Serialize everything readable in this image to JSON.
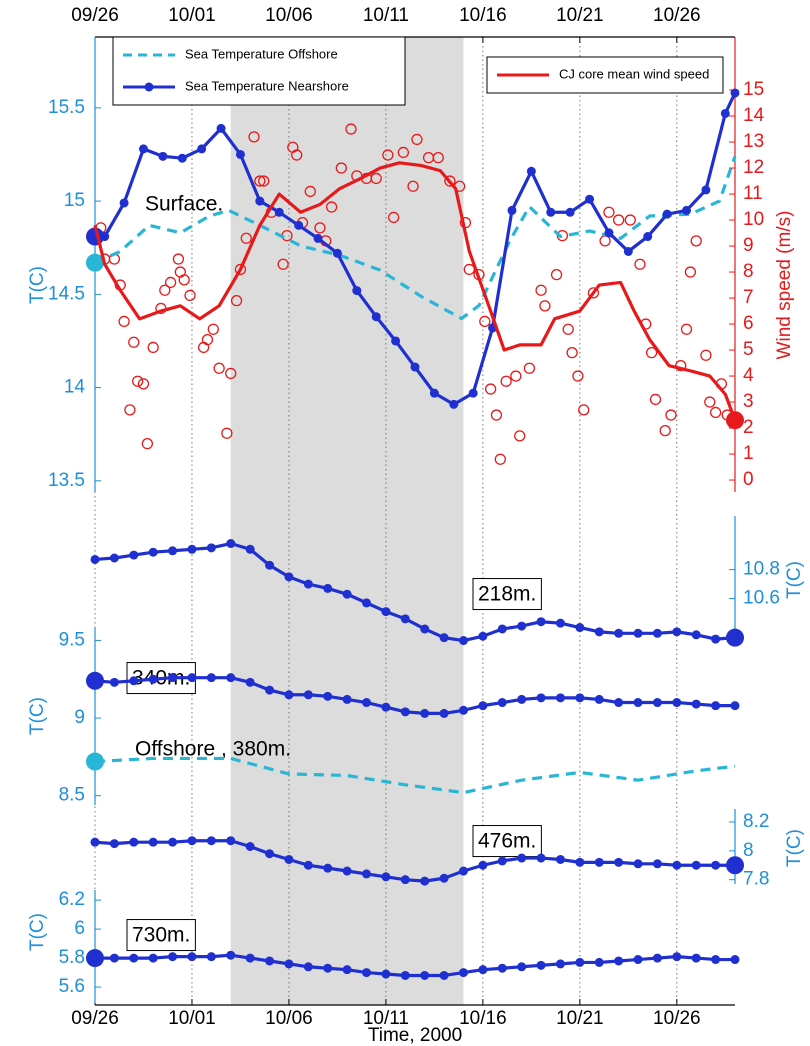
{
  "chart_data": {
    "type": "line",
    "xlim": [
      0,
      33
    ],
    "xticks": [
      {
        "value": 0,
        "label": "09/26"
      },
      {
        "value": 5,
        "label": "10/01"
      },
      {
        "value": 10,
        "label": "10/06"
      },
      {
        "value": 15,
        "label": "10/11"
      },
      {
        "value": 20,
        "label": "10/16"
      },
      {
        "value": 25,
        "label": "10/21"
      },
      {
        "value": 30,
        "label": "10/26"
      }
    ],
    "xlabel": "Time, 2000",
    "xgrid": true,
    "shaded_span": [
      7,
      19
    ],
    "shade_color": "#dcdcdc",
    "panels": [
      {
        "ylim": [
          13.44,
          15.88
        ],
        "yticks": [
          13.5,
          14,
          14.5,
          15,
          15.5
        ],
        "ylabel": "T(C)",
        "axis_side": "left",
        "ycolor": "#1e8fd8",
        "y2lim": [
          -0.46,
          17.04
        ],
        "y2ticks": [
          0,
          1,
          2,
          3,
          4,
          5,
          6,
          7,
          8,
          9,
          10,
          11,
          12,
          13,
          14,
          15
        ],
        "y2label": "Wind speed (m/s)",
        "y2color": "#e8191a",
        "labels": [
          "Surface."
        ],
        "series": [
          {
            "name": "Sea Temperature Offshore",
            "type": "line",
            "dashed": true,
            "marker": false,
            "color": "#29b6d6",
            "endpoint": "first",
            "x": [
              0,
              1.3,
              2.8,
              4.4,
              5.9,
              6.9,
              8.5,
              10.6,
              12.6,
              14.7,
              16.8,
              18.9,
              19.8,
              21.4,
              22.4,
              24,
              25.5,
              27.1,
              28.6,
              30.7,
              32.2,
              33
            ],
            "values": [
              14.67,
              14.73,
              14.87,
              14.83,
              14.92,
              14.95,
              14.87,
              14.76,
              14.71,
              14.63,
              14.49,
              14.37,
              14.44,
              14.79,
              14.97,
              14.81,
              14.84,
              14.8,
              14.92,
              14.93,
              15,
              15.24
            ]
          },
          {
            "name": "Sea Temperature Nearshore",
            "type": "line",
            "dashed": false,
            "marker": true,
            "color": "#1f2fd0",
            "endpoint": "first",
            "x": [
              0,
              0.5,
              1.5,
              2.5,
              3.5,
              4.5,
              5.5,
              6.5,
              7.5,
              8.5,
              9.5,
              10.5,
              11.5,
              12.5,
              13.5,
              14.5,
              15.5,
              16.5,
              17.5,
              18.5,
              19.5,
              20.5,
              21.5,
              22.5,
              23.5,
              24.5,
              25.5,
              26.5,
              27.5,
              28.5,
              29.5,
              30.5,
              31.5,
              32.5,
              33
            ],
            "values": [
              14.81,
              14.81,
              14.99,
              15.28,
              15.24,
              15.23,
              15.28,
              15.39,
              15.25,
              15,
              14.94,
              14.87,
              14.8,
              14.72,
              14.52,
              14.38,
              14.25,
              14.11,
              13.97,
              13.91,
              13.97,
              14.32,
              14.95,
              15.16,
              14.94,
              14.94,
              15.01,
              14.83,
              14.73,
              14.81,
              14.93,
              14.95,
              15.06,
              15.47,
              15.58
            ]
          },
          {
            "type": "scatter",
            "color": "#e8191a",
            "axis": "y2",
            "x": [
              0.3,
              0.5,
              1.0,
              1.3,
              1.5,
              1.8,
              2.0,
              2.2,
              2.5,
              2.7,
              3.0,
              3.4,
              3.6,
              3.9,
              4.3,
              4.4,
              4.6,
              4.9,
              5.6,
              5.8,
              6.1,
              6.4,
              6.8,
              7.0,
              7.3,
              7.5,
              7.8,
              8.2,
              8.5,
              8.7,
              9.1,
              9.7,
              9.9,
              10.2,
              10.4,
              10.7,
              11.1,
              11.6,
              11.9,
              12.2,
              12.7,
              13.2,
              13.5,
              14.0,
              14.5,
              15.1,
              15.4,
              15.9,
              16.4,
              16.6,
              17.2,
              17.7,
              18.3,
              18.8,
              19.1,
              19.3,
              19.8,
              20.1,
              20.4,
              20.7,
              20.9,
              21.2,
              21.7,
              21.9,
              22.4,
              23.0,
              23.2,
              23.8,
              24.1,
              24.4,
              24.6,
              24.9,
              25.2,
              25.7,
              26.3,
              26.5,
              27.0,
              27.6,
              28.1,
              28.4,
              28.7,
              28.9,
              29.4,
              29.7,
              30.2,
              30.5,
              30.7,
              31.0,
              31.5,
              31.7,
              32.0,
              32.3,
              32.6
            ],
            "values": [
              9.7,
              8.5,
              8.5,
              7.5,
              6.1,
              2.7,
              5.3,
              3.8,
              3.7,
              1.4,
              5.1,
              6.6,
              7.3,
              7.6,
              8.5,
              8.0,
              7.7,
              7.1,
              5.1,
              5.4,
              5.8,
              4.3,
              1.8,
              4.1,
              6.9,
              8.1,
              9.3,
              13.2,
              11.5,
              11.5,
              10.3,
              8.3,
              9.4,
              12.8,
              12.5,
              9.9,
              11.1,
              9.7,
              9.2,
              10.5,
              12.0,
              13.5,
              11.7,
              11.6,
              11.6,
              12.5,
              10.1,
              12.6,
              11.3,
              13.1,
              12.4,
              12.4,
              11.5,
              11.3,
              9.9,
              8.1,
              7.9,
              6.1,
              3.5,
              2.5,
              0.8,
              3.8,
              4.0,
              1.7,
              4.3,
              7.3,
              6.7,
              7.9,
              9.4,
              5.8,
              4.9,
              4.0,
              2.7,
              7.2,
              9.2,
              10.3,
              10.0,
              10.0,
              8.3,
              6.0,
              4.9,
              3.1,
              1.9,
              2.5,
              4.4,
              5.8,
              8.0,
              9.2,
              4.8,
              3.0,
              2.6,
              3.7,
              2.5
            ]
          },
          {
            "name": "CJ core mean wind speed",
            "type": "line",
            "dashed": false,
            "marker": false,
            "color": "#e8191a",
            "axis": "y2",
            "endpoint": "last",
            "x": [
              0,
              0.5,
              1.3,
              2.3,
              3.4,
              4.4,
              5.4,
              6.4,
              7.5,
              8.5,
              9.5,
              10.6,
              11.6,
              12.6,
              13.7,
              14.7,
              15.7,
              16.8,
              17.8,
              18.6,
              19.3,
              20.4,
              21.1,
              21.9,
              23,
              23.7,
              25,
              26,
              27.1,
              27.8,
              28.6,
              29.6,
              30.7,
              31.7,
              32.5,
              33
            ],
            "values": [
              9.8,
              8.3,
              7.3,
              6.2,
              6.5,
              6.7,
              6.2,
              6.7,
              8.1,
              9.8,
              11.0,
              10.3,
              10.6,
              11.2,
              11.6,
              12.0,
              12.2,
              12.1,
              11.9,
              11.2,
              8.8,
              6.5,
              5.0,
              5.2,
              5.2,
              6.2,
              6.5,
              7.5,
              7.6,
              6.5,
              5.4,
              4.4,
              4.2,
              4.0,
              3.3,
              2.3
            ]
          }
        ]
      },
      {
        "ylim": [
          10.3,
          11.17
        ],
        "yticks": [
          10.6,
          10.8
        ],
        "ylabel": "T(C)",
        "axis_side": "right",
        "ycolor": "#1e8fd8",
        "labels": [
          "218m."
        ],
        "series": [
          {
            "type": "line",
            "dashed": false,
            "marker": true,
            "color": "#1f2fd0",
            "endpoint": "last",
            "x": [
              0,
              1,
              2,
              3,
              4,
              5,
              6,
              7,
              8,
              9,
              10,
              11,
              12,
              13,
              14,
              15,
              16,
              17,
              18,
              19,
              20,
              21,
              22,
              23,
              24,
              25,
              26,
              27,
              28,
              29,
              30,
              31,
              32,
              33
            ],
            "values": [
              10.87,
              10.88,
              10.9,
              10.92,
              10.93,
              10.94,
              10.95,
              10.98,
              10.94,
              10.83,
              10.75,
              10.7,
              10.67,
              10.63,
              10.57,
              10.51,
              10.46,
              10.39,
              10.33,
              10.31,
              10.34,
              10.39,
              10.41,
              10.44,
              10.43,
              10.4,
              10.37,
              10.36,
              10.36,
              10.36,
              10.37,
              10.35,
              10.32,
              10.33
            ]
          }
        ]
      },
      {
        "ylim": [
          8.44,
          9.58
        ],
        "yticks": [
          8.5,
          9,
          9.5
        ],
        "ylabel": "T(C)",
        "axis_side": "left",
        "ycolor": "#1e8fd8",
        "labels": [
          "340m.",
          "Offshore , 380m."
        ],
        "series": [
          {
            "type": "line",
            "dashed": false,
            "marker": true,
            "color": "#1f2fd0",
            "endpoint": "first",
            "x": [
              0,
              1,
              2,
              3,
              4,
              5,
              6,
              7,
              8,
              9,
              10,
              11,
              12,
              13,
              14,
              15,
              16,
              17,
              18,
              19,
              20,
              21,
              22,
              23,
              24,
              25,
              26,
              27,
              28,
              29,
              30,
              31,
              32,
              33
            ],
            "values": [
              9.24,
              9.23,
              9.24,
              9.25,
              9.26,
              9.26,
              9.26,
              9.26,
              9.23,
              9.18,
              9.15,
              9.15,
              9.14,
              9.12,
              9.1,
              9.07,
              9.04,
              9.03,
              9.03,
              9.05,
              9.08,
              9.1,
              9.12,
              9.13,
              9.13,
              9.13,
              9.12,
              9.1,
              9.1,
              9.1,
              9.1,
              9.09,
              9.08,
              9.08
            ]
          },
          {
            "type": "line",
            "dashed": true,
            "marker": false,
            "color": "#29b6d6",
            "endpoint": "first",
            "x": [
              0,
              3,
              7,
              10,
              13,
              16,
              19,
              22,
              25,
              28,
              31,
              33
            ],
            "values": [
              8.72,
              8.74,
              8.74,
              8.64,
              8.63,
              8.57,
              8.52,
              8.6,
              8.65,
              8.6,
              8.66,
              8.69
            ]
          }
        ]
      },
      {
        "ylim": [
          7.77,
          8.29
        ],
        "yticks": [
          7.8,
          8,
          8.2
        ],
        "ylabel": "T(C)",
        "axis_side": "right",
        "ycolor": "#1e8fd8",
        "labels": [
          "476m."
        ],
        "series": [
          {
            "type": "line",
            "dashed": false,
            "marker": true,
            "color": "#1f2fd0",
            "endpoint": "last",
            "x": [
              0,
              1,
              2,
              3,
              4,
              5,
              6,
              7,
              8,
              9,
              10,
              11,
              12,
              13,
              14,
              15,
              16,
              17,
              18,
              19,
              20,
              21,
              22,
              23,
              24,
              25,
              26,
              27,
              28,
              29,
              30,
              31,
              32,
              33
            ],
            "values": [
              8.06,
              8.05,
              8.06,
              8.06,
              8.06,
              8.07,
              8.07,
              8.07,
              8.03,
              7.98,
              7.94,
              7.9,
              7.88,
              7.86,
              7.84,
              7.82,
              7.8,
              7.79,
              7.81,
              7.86,
              7.9,
              7.93,
              7.95,
              7.95,
              7.94,
              7.92,
              7.92,
              7.92,
              7.91,
              7.91,
              7.9,
              7.9,
              7.9,
              7.9
            ]
          }
        ]
      },
      {
        "ylim": [
          5.49,
          6.27
        ],
        "yticks": [
          5.6,
          5.8,
          6,
          6.2
        ],
        "ylabel": "T(C)",
        "axis_side": "left",
        "ycolor": "#1e8fd8",
        "labels": [
          "730m."
        ],
        "series": [
          {
            "type": "line",
            "dashed": false,
            "marker": true,
            "color": "#1f2fd0",
            "endpoint": "first",
            "x": [
              0,
              1,
              2,
              3,
              4,
              5,
              6,
              7,
              8,
              9,
              10,
              11,
              12,
              13,
              14,
              15,
              16,
              17,
              18,
              19,
              20,
              21,
              22,
              23,
              24,
              25,
              26,
              27,
              28,
              29,
              30,
              31,
              32,
              33
            ],
            "values": [
              5.8,
              5.8,
              5.8,
              5.8,
              5.81,
              5.81,
              5.81,
              5.82,
              5.8,
              5.78,
              5.76,
              5.74,
              5.73,
              5.72,
              5.7,
              5.69,
              5.68,
              5.68,
              5.68,
              5.7,
              5.72,
              5.73,
              5.74,
              5.75,
              5.76,
              5.77,
              5.77,
              5.78,
              5.79,
              5.8,
              5.81,
              5.8,
              5.79,
              5.79
            ]
          }
        ]
      }
    ]
  }
}
